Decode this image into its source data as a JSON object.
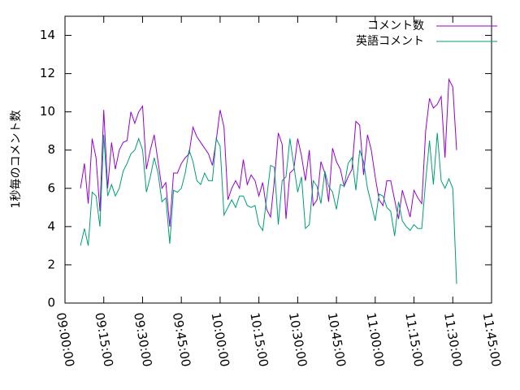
{
  "chart_data": {
    "type": "line",
    "ylabel": "1秒毎のコメント数",
    "x": [
      "09:06:00",
      "09:07:30",
      "09:09:00",
      "09:10:30",
      "09:12:00",
      "09:13:30",
      "09:15:00",
      "09:16:30",
      "09:18:00",
      "09:19:30",
      "09:21:00",
      "09:22:30",
      "09:24:00",
      "09:25:30",
      "09:27:00",
      "09:28:30",
      "09:30:00",
      "09:31:30",
      "09:33:00",
      "09:34:30",
      "09:36:00",
      "09:37:30",
      "09:39:00",
      "09:40:30",
      "09:42:00",
      "09:43:30",
      "09:45:00",
      "09:46:30",
      "09:48:00",
      "09:49:30",
      "09:51:00",
      "09:52:30",
      "09:54:00",
      "09:55:30",
      "09:57:00",
      "09:58:30",
      "10:00:00",
      "10:01:30",
      "10:03:00",
      "10:04:30",
      "10:06:00",
      "10:07:30",
      "10:09:00",
      "10:10:30",
      "10:12:00",
      "10:13:30",
      "10:15:00",
      "10:16:30",
      "10:18:00",
      "10:19:30",
      "10:21:00",
      "10:22:30",
      "10:24:00",
      "10:25:30",
      "10:27:00",
      "10:28:30",
      "10:30:00",
      "10:31:30",
      "10:33:00",
      "10:34:30",
      "10:36:00",
      "10:37:30",
      "10:39:00",
      "10:40:30",
      "10:42:00",
      "10:43:30",
      "10:45:00",
      "10:46:30",
      "10:48:00",
      "10:49:30",
      "10:51:00",
      "10:52:30",
      "10:54:00",
      "10:55:30",
      "10:57:00",
      "10:58:30",
      "11:00:00",
      "11:01:30",
      "11:03:00",
      "11:04:30",
      "11:06:00",
      "11:07:30",
      "11:09:00",
      "11:10:30",
      "11:12:00",
      "11:13:30",
      "11:15:00",
      "11:16:30",
      "11:18:00",
      "11:19:30",
      "11:21:00",
      "11:22:30",
      "11:24:00",
      "11:25:30",
      "11:27:00",
      "11:28:30",
      "11:30:00",
      "11:31:30"
    ],
    "series": [
      {
        "name": "コメント数",
        "color": "#9400d3",
        "values": [
          6.0,
          7.3,
          5.2,
          8.6,
          7.6,
          4.8,
          10.1,
          6.0,
          8.4,
          7.0,
          8.0,
          8.4,
          8.5,
          10.0,
          9.4,
          10.0,
          10.3,
          7.0,
          8.0,
          8.8,
          7.4,
          6.0,
          6.3,
          4.0,
          6.8,
          6.8,
          7.3,
          7.6,
          7.8,
          9.2,
          8.7,
          8.4,
          8.1,
          7.8,
          7.2,
          8.5,
          10.1,
          9.2,
          5.4,
          6.0,
          6.4,
          6.0,
          7.5,
          6.2,
          6.7,
          6.4,
          5.6,
          6.3,
          4.9,
          4.5,
          6.4,
          8.9,
          8.3,
          4.4,
          6.8,
          7.0,
          8.6,
          7.7,
          6.4,
          8.0,
          5.1,
          5.4,
          7.4,
          6.8,
          5.3,
          8.1,
          7.4,
          7.0,
          6.1,
          6.6,
          7.0,
          9.5,
          9.3,
          6.7,
          8.8,
          8.0,
          6.6,
          5.4,
          5.1,
          6.4,
          6.4,
          5.4,
          4.4,
          5.9,
          5.2,
          4.5,
          5.9,
          5.5,
          5.2,
          9.0,
          10.7,
          10.2,
          10.4,
          10.8,
          7.6,
          11.7,
          11.3,
          8.0
        ]
      },
      {
        "name": "英語コメント",
        "color": "#009e73",
        "values": [
          3.0,
          3.9,
          3.0,
          5.8,
          5.6,
          4.0,
          8.8,
          5.6,
          6.2,
          5.6,
          6.0,
          6.9,
          7.3,
          7.8,
          8.0,
          8.6,
          8.0,
          5.8,
          6.6,
          7.6,
          6.8,
          5.3,
          5.5,
          3.1,
          5.9,
          5.8,
          6.0,
          6.8,
          8.0,
          7.4,
          6.4,
          6.2,
          6.8,
          6.4,
          6.4,
          8.6,
          8.2,
          4.6,
          5.0,
          5.4,
          5.0,
          5.6,
          5.6,
          5.1,
          5.0,
          5.1,
          4.1,
          3.8,
          5.5,
          7.2,
          7.1,
          4.1,
          6.4,
          6.6,
          8.6,
          7.2,
          5.8,
          6.6,
          3.9,
          4.1,
          6.4,
          6.1,
          5.2,
          6.9,
          6.1,
          5.8,
          4.9,
          6.2,
          6.1,
          7.3,
          7.6,
          5.9,
          8.0,
          7.4,
          6.0,
          5.2,
          4.3,
          5.7,
          5.6,
          5.0,
          4.8,
          3.5,
          5.3,
          4.3,
          4.0,
          3.8,
          4.1,
          3.9,
          3.9,
          6.4,
          8.5,
          6.2,
          8.9,
          6.4,
          6.0,
          6.5,
          6.0,
          1.0
        ]
      }
    ],
    "xlim": [
      "09:00:00",
      "11:45:00"
    ],
    "xticks": [
      "09:00:00",
      "09:15:00",
      "09:30:00",
      "09:45:00",
      "10:00:00",
      "10:15:00",
      "10:30:00",
      "10:45:00",
      "11:00:00",
      "11:15:00",
      "11:30:00",
      "11:45:00"
    ],
    "ylim": [
      0,
      15
    ],
    "yticks": [
      0,
      2,
      4,
      6,
      8,
      10,
      12,
      14
    ],
    "legend": "top-right"
  }
}
